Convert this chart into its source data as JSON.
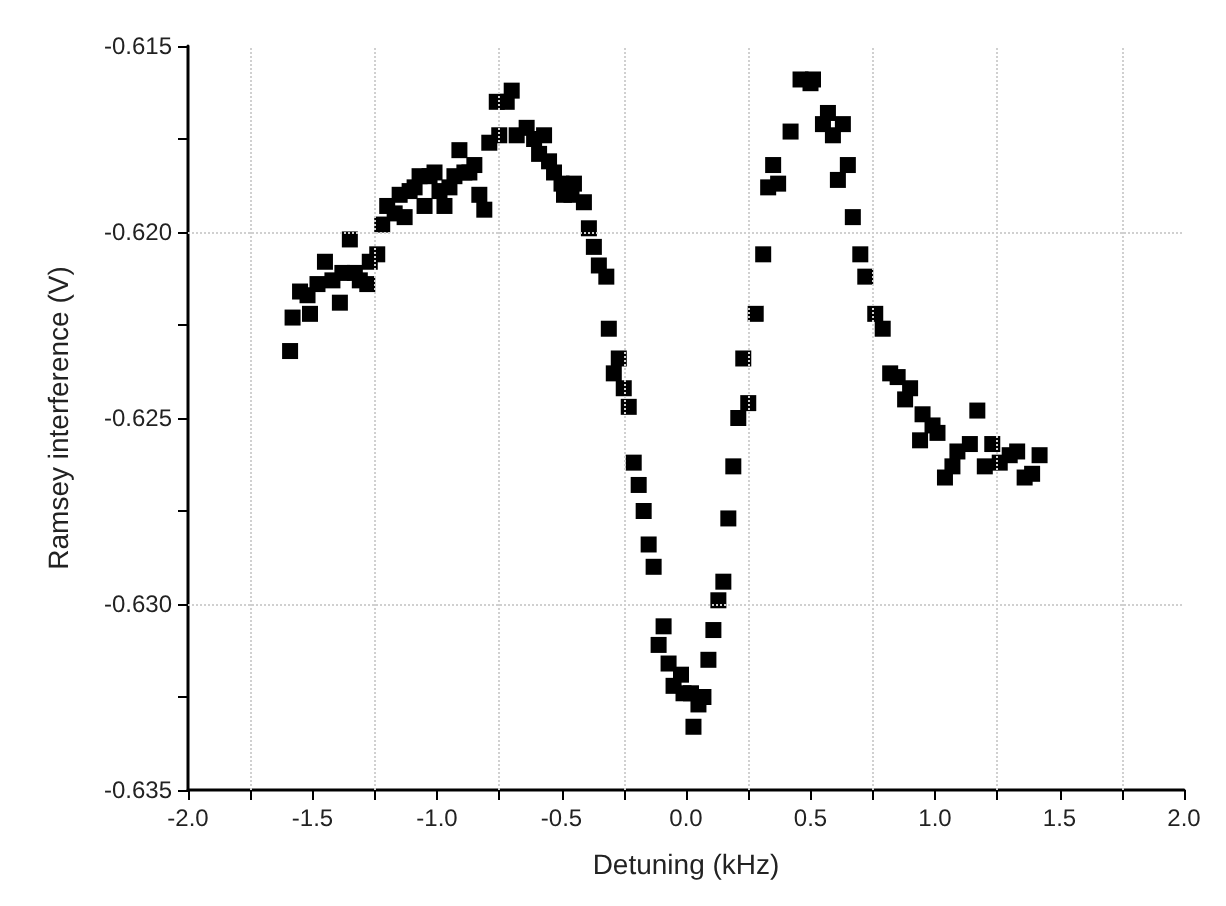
{
  "chart_data": {
    "type": "scatter",
    "xlabel": "Detuning (kHz)",
    "ylabel": "Ramsey interference (V)",
    "xlim": [
      -2.0,
      2.0
    ],
    "xticks": [
      {
        "value": -2.0,
        "label": "-2.0"
      },
      {
        "value": -1.75,
        "label": null
      },
      {
        "value": -1.5,
        "label": "-1.5"
      },
      {
        "value": -1.25,
        "label": null
      },
      {
        "value": -1.0,
        "label": "-1.0"
      },
      {
        "value": -0.75,
        "label": null
      },
      {
        "value": -0.5,
        "label": "-0.5"
      },
      {
        "value": -0.25,
        "label": null
      },
      {
        "value": 0,
        "label": "0.0"
      },
      {
        "value": 0.25,
        "label": null
      },
      {
        "value": 0.5,
        "label": "0.5"
      },
      {
        "value": 0.75,
        "label": null
      },
      {
        "value": 1.0,
        "label": "1.0"
      },
      {
        "value": 1.25,
        "label": null
      },
      {
        "value": 1.5,
        "label": "1.5"
      },
      {
        "value": 1.75,
        "label": null
      },
      {
        "value": 2.0,
        "label": "2.0"
      }
    ],
    "ylim": [
      -0.635,
      -0.615
    ],
    "yticks": [
      -0.635,
      {
        "value": -0.6325,
        "label": null
      },
      {
        "value": -0.63,
        "label": "-0.630"
      },
      {
        "value": -0.6275,
        "label": null
      },
      -0.625,
      {
        "value": -0.6225,
        "label": null
      },
      {
        "value": -0.62,
        "label": "-0.620"
      },
      {
        "value": -0.6175,
        "label": null
      },
      -0.615
    ],
    "grid": true,
    "marker": "square",
    "series": [
      {
        "color": "#000000",
        "x": [
          -1.59,
          -1.58,
          -1.55,
          -1.52,
          -1.51,
          -1.48,
          -1.45,
          -1.42,
          -1.39,
          -1.38,
          -1.35,
          -1.33,
          -1.31,
          -1.28,
          -1.27,
          -1.24,
          -1.22,
          -1.2,
          -1.17,
          -1.15,
          -1.13,
          -1.11,
          -1.09,
          -1.07,
          -1.05,
          -1.03,
          -1.01,
          -0.99,
          -0.97,
          -0.95,
          -0.93,
          -0.91,
          -0.89,
          -0.87,
          -0.85,
          -0.83,
          -0.81,
          -0.79,
          -0.76,
          -0.75,
          -0.72,
          -0.7,
          -0.68,
          -0.64,
          -0.61,
          -0.59,
          -0.57,
          -0.55,
          -0.53,
          -0.5,
          -0.49,
          -0.46,
          -0.45,
          -0.41,
          -0.39,
          -0.37,
          -0.35,
          -0.32,
          -0.31,
          -0.29,
          -0.27,
          -0.25,
          -0.23,
          -0.21,
          -0.19,
          -0.17,
          -0.15,
          -0.13,
          -0.11,
          -0.09,
          -0.07,
          -0.05,
          -0.02,
          -0.01,
          0.02,
          0.03,
          0.05,
          0.07,
          0.09,
          0.11,
          0.13,
          0.15,
          0.17,
          0.19,
          0.21,
          0.23,
          0.25,
          0.28,
          0.31,
          0.33,
          0.35,
          0.37,
          0.42,
          0.46,
          0.5,
          0.51,
          0.55,
          0.57,
          0.59,
          0.61,
          0.63,
          0.65,
          0.67,
          0.7,
          0.72,
          0.76,
          0.79,
          0.82,
          0.85,
          0.88,
          0.9,
          0.94,
          0.95,
          0.99,
          1.01,
          1.04,
          1.07,
          1.09,
          1.14,
          1.17,
          1.2,
          1.23,
          1.26,
          1.3,
          1.33,
          1.36,
          1.39,
          1.42
        ],
        "values": [
          -0.6232,
          -0.6223,
          -0.6216,
          -0.6217,
          -0.6222,
          -0.6214,
          -0.6208,
          -0.6213,
          -0.6219,
          -0.6211,
          -0.6202,
          -0.6211,
          -0.6213,
          -0.6214,
          -0.6208,
          -0.6206,
          -0.6198,
          -0.6193,
          -0.6195,
          -0.619,
          -0.6196,
          -0.6189,
          -0.6188,
          -0.6185,
          -0.6193,
          -0.6185,
          -0.6184,
          -0.6189,
          -0.6193,
          -0.6188,
          -0.6185,
          -0.6178,
          -0.6184,
          -0.6184,
          -0.6182,
          -0.619,
          -0.6194,
          -0.6176,
          -0.6165,
          -0.6174,
          -0.6165,
          -0.6162,
          -0.6174,
          -0.6172,
          -0.6175,
          -0.6179,
          -0.6174,
          -0.6181,
          -0.6184,
          -0.6187,
          -0.619,
          -0.619,
          -0.6187,
          -0.6192,
          -0.6199,
          -0.6204,
          -0.6209,
          -0.6212,
          -0.6226,
          -0.6238,
          -0.6234,
          -0.6242,
          -0.6247,
          -0.6262,
          -0.6268,
          -0.6275,
          -0.6284,
          -0.629,
          -0.6311,
          -0.6306,
          -0.6316,
          -0.6322,
          -0.6319,
          -0.6324,
          -0.6324,
          -0.6333,
          -0.6327,
          -0.6325,
          -0.6315,
          -0.6307,
          -0.6299,
          -0.6294,
          -0.6277,
          -0.6263,
          -0.625,
          -0.6234,
          -0.6246,
          -0.6222,
          -0.6206,
          -0.6188,
          -0.6182,
          -0.6187,
          -0.6173,
          -0.6159,
          -0.616,
          -0.6159,
          -0.6171,
          -0.6168,
          -0.6174,
          -0.6186,
          -0.6171,
          -0.6182,
          -0.6196,
          -0.6206,
          -0.6212,
          -0.6222,
          -0.6226,
          -0.6238,
          -0.6239,
          -0.6245,
          -0.6242,
          -0.6256,
          -0.6249,
          -0.6252,
          -0.6254,
          -0.6266,
          -0.6263,
          -0.6259,
          -0.6257,
          -0.6248,
          -0.6263,
          -0.6257,
          -0.6262,
          -0.626,
          -0.6259,
          -0.6266,
          -0.6265,
          -0.626
        ]
      }
    ]
  }
}
